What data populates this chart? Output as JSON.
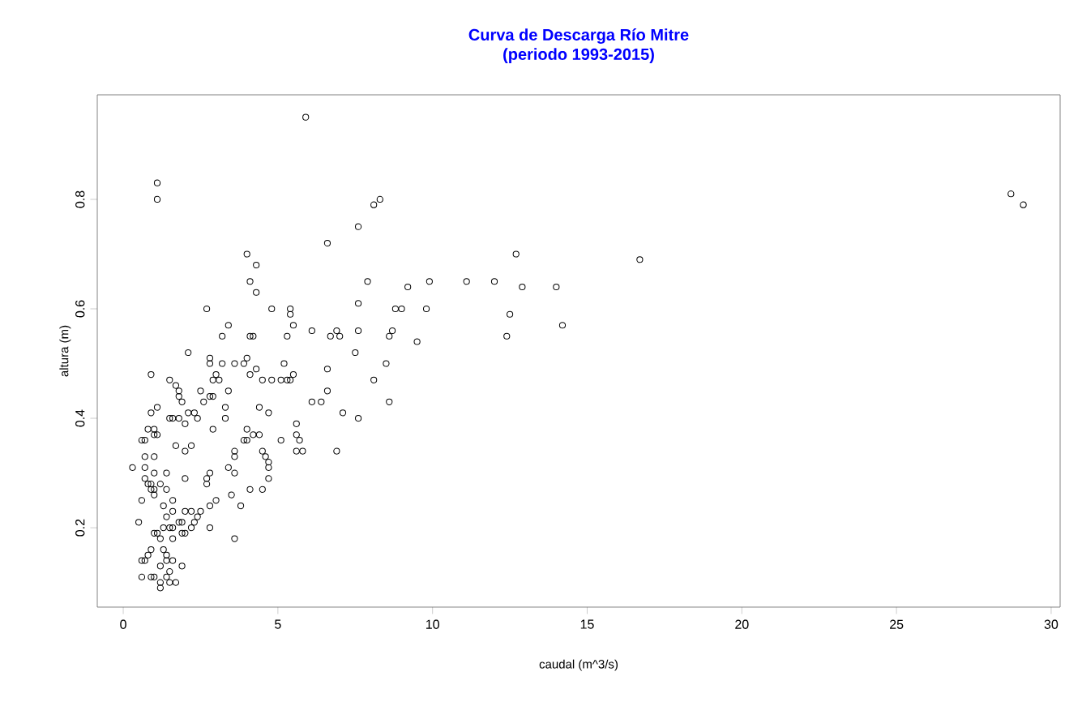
{
  "chart_data": {
    "type": "scatter",
    "title": "Curva de Descarga Río Mitre",
    "subtitle": "(periodo 1993-2015)",
    "xlabel": "caudal (m^3/s)",
    "ylabel": "altura (m)",
    "marker": "circle",
    "grid": false,
    "xlim": [
      -0.84,
      30.29
    ],
    "ylim": [
      0.055,
      0.991
    ],
    "xticks": [
      0,
      5,
      10,
      15,
      20,
      25,
      30
    ],
    "yticks": [
      0.2,
      0.4,
      0.6,
      0.8
    ],
    "series": [
      {
        "color": "#000000",
        "x": [
          5.9,
          1.1,
          1.1,
          28.7,
          29.1,
          8.1,
          8.3,
          7.6,
          6.6,
          4.0,
          12.7,
          4.3,
          4.1,
          4.3,
          16.7,
          7.9,
          11.1,
          12.0,
          12.9,
          14.0,
          9.9,
          9.2,
          2.7,
          4.8,
          5.4,
          5.4,
          8.8,
          9.0,
          9.8,
          7.6,
          12.5,
          3.4,
          5.5,
          14.2,
          6.1,
          7.6,
          6.9,
          8.7,
          3.2,
          4.1,
          4.2,
          5.3,
          6.7,
          7.0,
          8.6,
          12.4,
          9.5,
          2.1,
          7.5,
          2.8,
          2.8,
          4.0,
          3.6,
          3.9,
          3.2,
          5.2,
          8.5,
          0.9,
          4.1,
          5.5,
          3.0,
          2.9,
          3.1,
          1.5,
          4.5,
          4.8,
          5.1,
          5.3,
          5.4,
          8.1,
          6.6,
          4.3,
          1.7,
          1.8,
          2.5,
          3.4,
          6.1,
          6.4,
          8.6,
          1.8,
          2.8,
          2.9,
          6.6,
          1.9,
          2.6,
          1.1,
          4.4,
          3.3,
          2.1,
          2.3,
          0.9,
          7.1,
          4.7,
          1.5,
          1.6,
          1.8,
          2.4,
          3.3,
          7.6,
          2.0,
          5.6,
          4.0,
          2.9,
          0.8,
          1.0,
          1.0,
          1.1,
          4.2,
          4.4,
          5.6,
          3.9,
          4.0,
          0.6,
          0.7,
          5.1,
          5.7,
          1.7,
          2.2,
          2.0,
          3.6,
          4.5,
          5.6,
          5.8,
          6.9,
          1.0,
          4.6,
          3.6,
          0.7,
          4.7,
          0.3,
          0.7,
          3.4,
          3.6,
          4.7,
          1.0,
          1.4,
          2.8,
          2.0,
          0.7,
          2.7,
          4.7,
          0.8,
          0.9,
          1.2,
          2.7,
          0.9,
          1.0,
          4.1,
          4.5,
          1.4,
          1.0,
          3.5,
          0.6,
          1.6,
          3.0,
          3.8,
          2.8,
          1.3,
          2.5,
          2.0,
          2.2,
          1.6,
          1.4,
          2.4,
          1.9,
          1.8,
          0.5,
          2.3,
          1.5,
          1.6,
          2.8,
          2.2,
          1.3,
          1.0,
          1.1,
          1.9,
          2.0,
          3.6,
          1.2,
          1.6,
          0.9,
          1.3,
          0.8,
          1.4,
          0.6,
          0.7,
          1.4,
          1.6,
          1.2,
          1.9,
          1.5,
          0.6,
          0.9,
          1.0,
          1.4,
          1.2,
          1.7,
          1.5,
          1.2
        ],
        "values": [
          0.95,
          0.83,
          0.8,
          0.81,
          0.79,
          0.79,
          0.8,
          0.75,
          0.72,
          0.7,
          0.7,
          0.68,
          0.65,
          0.63,
          0.69,
          0.65,
          0.65,
          0.65,
          0.64,
          0.64,
          0.65,
          0.64,
          0.6,
          0.6,
          0.6,
          0.59,
          0.6,
          0.6,
          0.6,
          0.61,
          0.59,
          0.57,
          0.57,
          0.57,
          0.56,
          0.56,
          0.56,
          0.56,
          0.55,
          0.55,
          0.55,
          0.55,
          0.55,
          0.55,
          0.55,
          0.55,
          0.54,
          0.52,
          0.52,
          0.51,
          0.5,
          0.51,
          0.5,
          0.5,
          0.5,
          0.5,
          0.5,
          0.48,
          0.48,
          0.48,
          0.48,
          0.47,
          0.47,
          0.47,
          0.47,
          0.47,
          0.47,
          0.47,
          0.47,
          0.47,
          0.49,
          0.49,
          0.46,
          0.45,
          0.45,
          0.45,
          0.43,
          0.43,
          0.43,
          0.44,
          0.44,
          0.44,
          0.45,
          0.43,
          0.43,
          0.42,
          0.42,
          0.42,
          0.41,
          0.41,
          0.41,
          0.41,
          0.41,
          0.4,
          0.4,
          0.4,
          0.4,
          0.4,
          0.4,
          0.39,
          0.39,
          0.38,
          0.38,
          0.38,
          0.38,
          0.37,
          0.37,
          0.37,
          0.37,
          0.37,
          0.36,
          0.36,
          0.36,
          0.36,
          0.36,
          0.36,
          0.35,
          0.35,
          0.34,
          0.34,
          0.34,
          0.34,
          0.34,
          0.34,
          0.33,
          0.33,
          0.33,
          0.33,
          0.32,
          0.31,
          0.31,
          0.31,
          0.3,
          0.31,
          0.3,
          0.3,
          0.3,
          0.29,
          0.29,
          0.29,
          0.29,
          0.28,
          0.28,
          0.28,
          0.28,
          0.27,
          0.27,
          0.27,
          0.27,
          0.27,
          0.26,
          0.26,
          0.25,
          0.25,
          0.25,
          0.24,
          0.24,
          0.24,
          0.23,
          0.23,
          0.23,
          0.23,
          0.22,
          0.22,
          0.21,
          0.21,
          0.21,
          0.21,
          0.2,
          0.2,
          0.2,
          0.2,
          0.2,
          0.19,
          0.19,
          0.19,
          0.19,
          0.18,
          0.18,
          0.18,
          0.16,
          0.16,
          0.15,
          0.15,
          0.14,
          0.14,
          0.14,
          0.14,
          0.13,
          0.13,
          0.12,
          0.11,
          0.11,
          0.11,
          0.11,
          0.1,
          0.1,
          0.1,
          0.09
        ]
      }
    ]
  }
}
